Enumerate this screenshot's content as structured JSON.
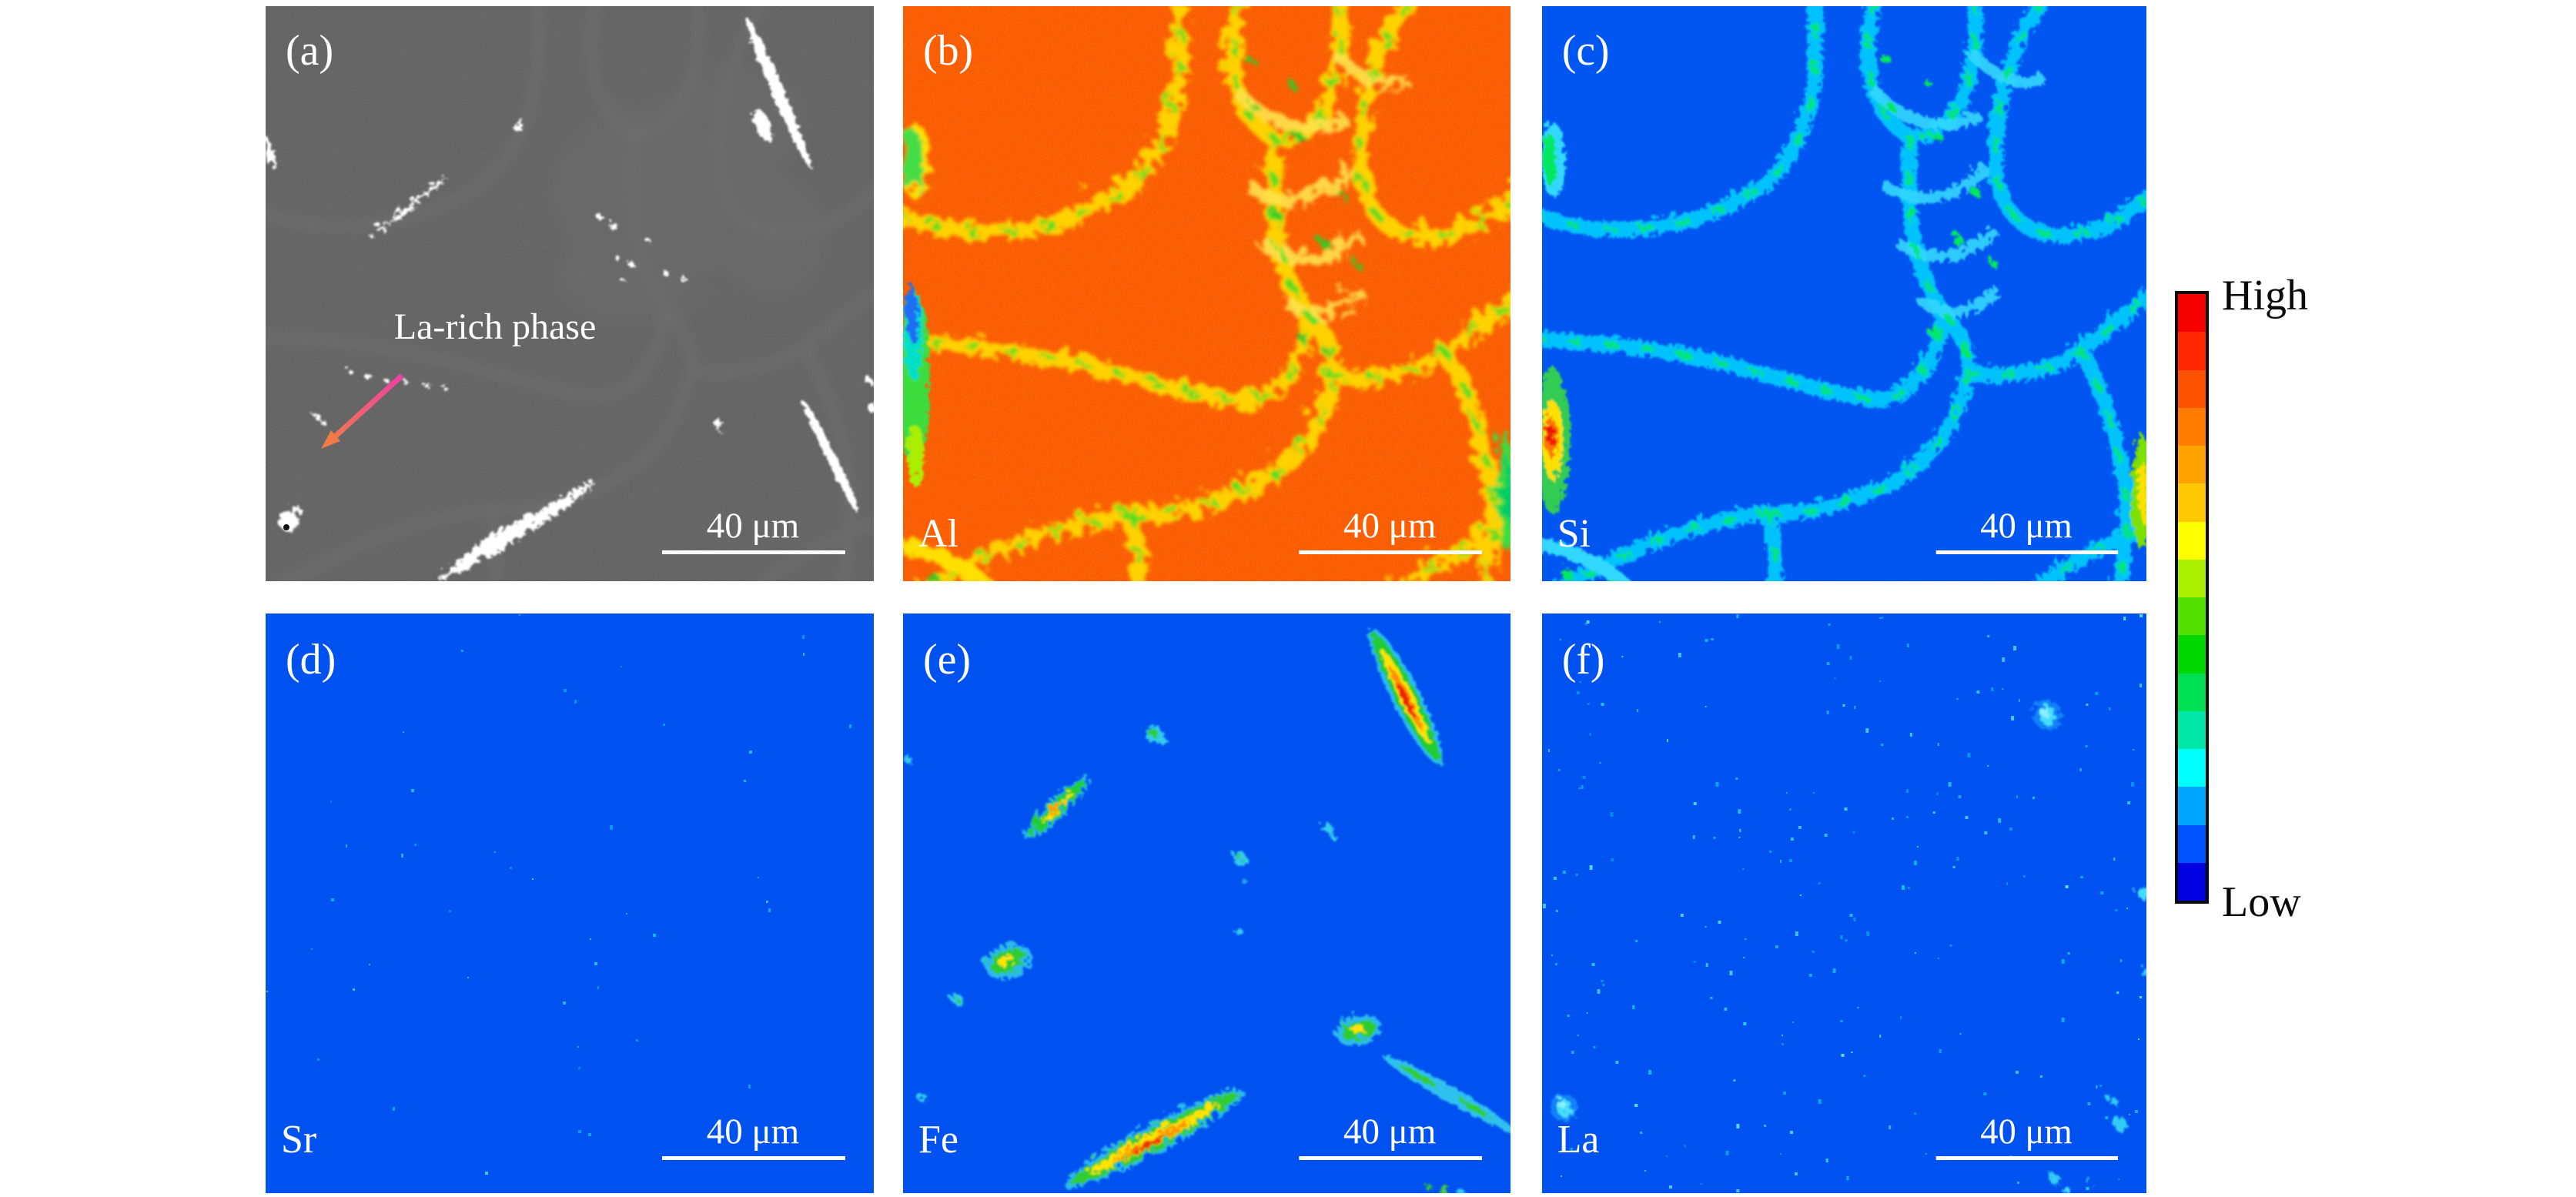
{
  "figure_type": "EDS elemental mapping of Al-Si alloy with La-rich phase",
  "colors": {
    "page_bg": "#ffffff",
    "map_blue_bg": "#0052f0",
    "map_orange_bg": "#fa5200",
    "sem_gray_bg": "#575757",
    "scalebar_white": "#ffffff",
    "arrow_start": "#ee3fa8",
    "arrow_end": "#f07b47"
  },
  "panels": {
    "a": {
      "label": "(a)",
      "kind": "SEM micrograph",
      "annotation": "La-rich phase",
      "scale_bar": "40 μm"
    },
    "b": {
      "label": "(b)",
      "element": "Al",
      "scale_bar": "40 μm"
    },
    "c": {
      "label": "(c)",
      "element": "Si",
      "scale_bar": "40 μm"
    },
    "d": {
      "label": "(d)",
      "element": "Sr",
      "scale_bar": "40 μm"
    },
    "e": {
      "label": "(e)",
      "element": "Fe",
      "scale_bar": "40 μm"
    },
    "f": {
      "label": "(f)",
      "element": "La",
      "scale_bar": "40 μm"
    }
  },
  "colorbar": {
    "high_label": "High",
    "low_label": "Low",
    "colors": [
      "#f40000",
      "#ff2600",
      "#ff5200",
      "#ff7c00",
      "#ffa300",
      "#ffc800",
      "#ffff00",
      "#aaf000",
      "#55e100",
      "#00d800",
      "#00e055",
      "#00e7aa",
      "#00ffff",
      "#00a6ff",
      "#0054ff",
      "#0000e0"
    ]
  },
  "speckles": {
    "d": {
      "count": 46,
      "seed": 12
    },
    "f": {
      "count": 215,
      "seed": 77
    }
  }
}
